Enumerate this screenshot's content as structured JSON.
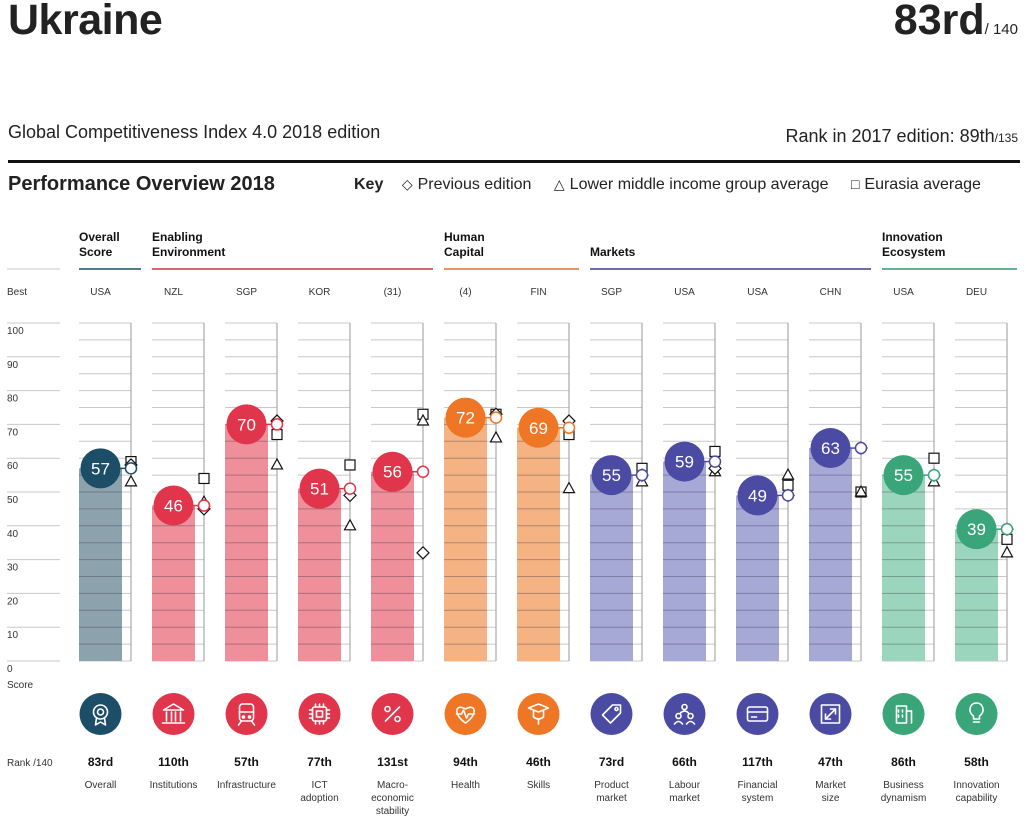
{
  "header": {
    "country": "Ukraine",
    "rank": "83rd",
    "rank_total": "/ 140",
    "edition": "Global Competitiveness Index 4.0 2018 edition",
    "prev_rank_label": "Rank in 2017 edition: 89th",
    "prev_rank_total": "/135"
  },
  "section_title": "Performance Overview 2018",
  "key": {
    "label": "Key",
    "items": [
      {
        "symbol": "◇",
        "label": "Previous edition"
      },
      {
        "symbol": "△",
        "label": "Lower middle income group average"
      },
      {
        "symbol": "□",
        "label": "Eurasia average"
      }
    ]
  },
  "chart_data": {
    "type": "bar",
    "ylim": [
      0,
      100
    ],
    "yticks": [
      0,
      10,
      20,
      30,
      40,
      50,
      60,
      70,
      80,
      90,
      100
    ],
    "best_label": "Best",
    "score_label": "Score",
    "rank_label": "Rank /140",
    "groups": [
      {
        "title": [
          "Overall",
          "Score"
        ],
        "color": "#1d4e68",
        "start": 0,
        "end": 0
      },
      {
        "title": [
          "Enabling",
          "Environment"
        ],
        "color": "#c0343f",
        "start": 1,
        "end": 4
      },
      {
        "title": [
          "Human",
          "Capital"
        ],
        "color": "#e07028",
        "start": 5,
        "end": 6
      },
      {
        "title": [
          "Markets"
        ],
        "color": "#3b3f8e",
        "start": 7,
        "end": 10
      },
      {
        "title": [
          "Innovation",
          "Ecosystem"
        ],
        "color": "#2f9a70",
        "start": 11,
        "end": 12
      }
    ],
    "pillars": [
      {
        "name": [
          "Overall"
        ],
        "best": "USA",
        "score": 57,
        "rank": "83rd",
        "prev": 58,
        "group_avg": 53,
        "region_avg": 59,
        "icon": "award-icon",
        "bar": "#8ca3ad",
        "circle": "#1d4e68"
      },
      {
        "name": [
          "Institutions"
        ],
        "best": "NZL",
        "score": 46,
        "rank": "110th",
        "prev": 45,
        "group_avg": 47,
        "region_avg": 54,
        "icon": "institution-icon",
        "bar": "#ee8f9a",
        "circle": "#e0354a"
      },
      {
        "name": [
          "Infrastructure"
        ],
        "best": "SGP",
        "score": 70,
        "rank": "57th",
        "prev": 71,
        "group_avg": 58,
        "region_avg": 67,
        "icon": "train-icon",
        "bar": "#ee8f9a",
        "circle": "#e0354a"
      },
      {
        "name": [
          "ICT",
          "adoption"
        ],
        "best": "KOR",
        "score": 51,
        "rank": "77th",
        "prev": 49,
        "group_avg": 40,
        "region_avg": 58,
        "icon": "chip-icon",
        "bar": "#ee8f9a",
        "circle": "#e0354a"
      },
      {
        "name": [
          "Macro-",
          "economic",
          "stability"
        ],
        "best": "(31)",
        "score": 56,
        "rank": "131st",
        "prev": 32,
        "group_avg": 71,
        "region_avg": 73,
        "icon": "percent-icon",
        "bar": "#ee8f9a",
        "circle": "#e0354a"
      },
      {
        "name": [
          "Health"
        ],
        "best": "(4)",
        "score": 72,
        "rank": "94th",
        "prev": 73,
        "group_avg": 66,
        "region_avg": 73,
        "icon": "heart-pulse-icon",
        "bar": "#f5b383",
        "circle": "#ef7624"
      },
      {
        "name": [
          "Skills"
        ],
        "best": "FIN",
        "score": 69,
        "rank": "46th",
        "prev": 71,
        "group_avg": 51,
        "region_avg": 67,
        "icon": "graduate-icon",
        "bar": "#f5b383",
        "circle": "#ef7624"
      },
      {
        "name": [
          "Product",
          "market"
        ],
        "best": "SGP",
        "score": 55,
        "rank": "73rd",
        "prev": 55,
        "group_avg": 53,
        "region_avg": 57,
        "icon": "price-tag-icon",
        "bar": "#a6a8d6",
        "circle": "#4c4ba4"
      },
      {
        "name": [
          "Labour",
          "market"
        ],
        "best": "USA",
        "score": 59,
        "rank": "66th",
        "prev": 57,
        "group_avg": 56,
        "region_avg": 62,
        "icon": "people-icon",
        "bar": "#a6a8d6",
        "circle": "#4c4ba4"
      },
      {
        "name": [
          "Financial",
          "system"
        ],
        "best": "USA",
        "score": 49,
        "rank": "117th",
        "prev": 49,
        "group_avg": 55,
        "region_avg": 52,
        "icon": "card-icon",
        "bar": "#a6a8d6",
        "circle": "#4c4ba4"
      },
      {
        "name": [
          "Market",
          "size"
        ],
        "best": "CHN",
        "score": 63,
        "rank": "47th",
        "prev": 63,
        "group_avg": 50,
        "region_avg": 50,
        "icon": "expand-icon",
        "bar": "#a6a8d6",
        "circle": "#4c4ba4"
      },
      {
        "name": [
          "Business",
          "dynamism"
        ],
        "best": "USA",
        "score": 55,
        "rank": "86th",
        "prev": 55,
        "group_avg": 53,
        "region_avg": 60,
        "icon": "building-icon",
        "bar": "#9cd5bd",
        "circle": "#3aa579"
      },
      {
        "name": [
          "Innovation",
          "capability"
        ],
        "best": "DEU",
        "score": 39,
        "rank": "58th",
        "prev": 39,
        "group_avg": 32,
        "region_avg": 36,
        "icon": "lightbulb-icon",
        "bar": "#9cd5bd",
        "circle": "#3aa579"
      }
    ]
  }
}
